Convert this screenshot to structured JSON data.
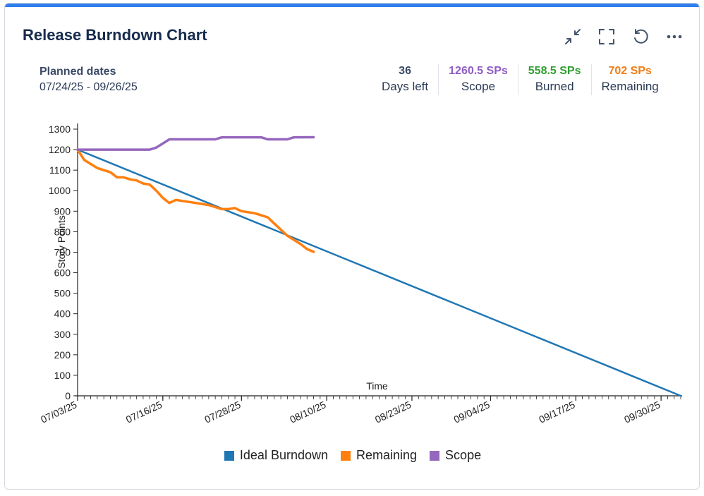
{
  "header": {
    "title": "Release Burndown Chart"
  },
  "actions": [
    {
      "name": "collapse-icon"
    },
    {
      "name": "fullscreen-icon"
    },
    {
      "name": "refresh-icon"
    },
    {
      "name": "more-icon"
    }
  ],
  "planned": {
    "label": "Planned dates",
    "value": "07/24/25 - 09/26/25"
  },
  "stats": [
    {
      "value": "36",
      "label": "Days left",
      "color": "#3a4a66"
    },
    {
      "value": "1260.5 SPs",
      "label": "Scope",
      "color": "#8e5cc4"
    },
    {
      "value": "558.5 SPs",
      "label": "Burned",
      "color": "#2e9e2e"
    },
    {
      "value": "702 SPs",
      "label": "Remaining",
      "color": "#f07c14"
    }
  ],
  "chart_data": {
    "type": "line",
    "title": "Release Burndown Chart",
    "xlabel": "Time",
    "ylabel": "Story Points",
    "ylim": [
      0,
      1300
    ],
    "yticks": [
      0,
      100,
      200,
      300,
      400,
      500,
      600,
      700,
      800,
      900,
      1000,
      1100,
      1200,
      1300
    ],
    "x_start": "2025-07-03",
    "x_end": "2025-10-03",
    "xtick_labels": [
      {
        "date": "2025-07-03",
        "label": "07/03/25"
      },
      {
        "date": "2025-07-16",
        "label": "07/16/25"
      },
      {
        "date": "2025-07-28",
        "label": "07/28/25"
      },
      {
        "date": "2025-08-10",
        "label": "08/10/25"
      },
      {
        "date": "2025-08-23",
        "label": "08/23/25"
      },
      {
        "date": "2025-09-04",
        "label": "09/04/25"
      },
      {
        "date": "2025-09-17",
        "label": "09/17/25"
      },
      {
        "date": "2025-09-30",
        "label": "09/30/25"
      }
    ],
    "series": [
      {
        "name": "Ideal Burndown",
        "color": "#1f77b4",
        "points": [
          [
            "2025-07-03",
            1200
          ],
          [
            "2025-10-03",
            0
          ]
        ]
      },
      {
        "name": "Remaining",
        "color": "#ff7f0e",
        "points": [
          [
            "2025-07-03",
            1200
          ],
          [
            "2025-07-04",
            1150
          ],
          [
            "2025-07-05",
            1130
          ],
          [
            "2025-07-06",
            1110
          ],
          [
            "2025-07-07",
            1100
          ],
          [
            "2025-07-08",
            1090
          ],
          [
            "2025-07-09",
            1065
          ],
          [
            "2025-07-10",
            1065
          ],
          [
            "2025-07-11",
            1055
          ],
          [
            "2025-07-12",
            1050
          ],
          [
            "2025-07-13",
            1035
          ],
          [
            "2025-07-14",
            1030
          ],
          [
            "2025-07-15",
            1000
          ],
          [
            "2025-07-16",
            965
          ],
          [
            "2025-07-17",
            940
          ],
          [
            "2025-07-18",
            955
          ],
          [
            "2025-07-19",
            950
          ],
          [
            "2025-07-20",
            945
          ],
          [
            "2025-07-21",
            940
          ],
          [
            "2025-07-22",
            935
          ],
          [
            "2025-07-23",
            930
          ],
          [
            "2025-07-24",
            920
          ],
          [
            "2025-07-25",
            910
          ],
          [
            "2025-07-26",
            910
          ],
          [
            "2025-07-27",
            915
          ],
          [
            "2025-07-28",
            900
          ],
          [
            "2025-07-29",
            895
          ],
          [
            "2025-07-30",
            890
          ],
          [
            "2025-07-31",
            880
          ],
          [
            "2025-08-01",
            870
          ],
          [
            "2025-08-02",
            840
          ],
          [
            "2025-08-03",
            810
          ],
          [
            "2025-08-04",
            780
          ],
          [
            "2025-08-05",
            760
          ],
          [
            "2025-08-06",
            740
          ],
          [
            "2025-08-07",
            715
          ],
          [
            "2025-08-08",
            702
          ]
        ]
      },
      {
        "name": "Scope",
        "color": "#9467bd",
        "points": [
          [
            "2025-07-03",
            1200
          ],
          [
            "2025-07-14",
            1200
          ],
          [
            "2025-07-15",
            1210
          ],
          [
            "2025-07-16",
            1230
          ],
          [
            "2025-07-17",
            1250
          ],
          [
            "2025-07-24",
            1250
          ],
          [
            "2025-07-25",
            1260
          ],
          [
            "2025-07-31",
            1260
          ],
          [
            "2025-08-01",
            1250
          ],
          [
            "2025-08-04",
            1250
          ],
          [
            "2025-08-05",
            1260
          ],
          [
            "2025-08-08",
            1260.5
          ]
        ]
      }
    ],
    "legend": [
      "Ideal Burndown",
      "Remaining",
      "Scope"
    ]
  }
}
